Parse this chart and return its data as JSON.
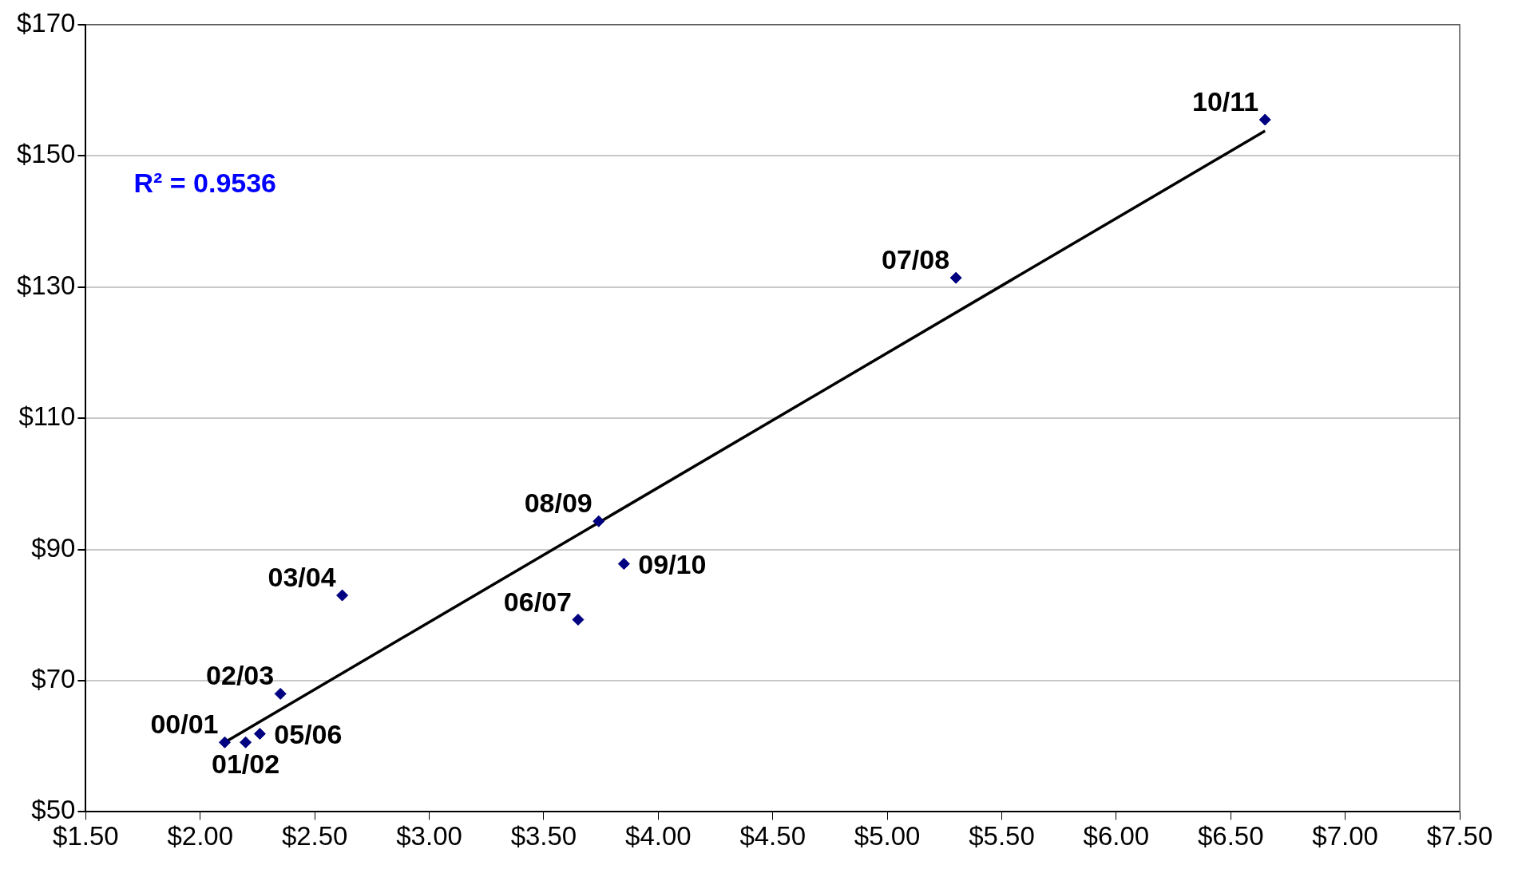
{
  "chart_data": {
    "type": "scatter",
    "marker": "diamond",
    "grid": "y",
    "legend": false,
    "xlim": [
      1.5,
      7.5
    ],
    "ylim": [
      50,
      170
    ],
    "xticks": [
      {
        "value": 1.5,
        "label": "$1.50"
      },
      {
        "value": 2,
        "label": "$2.00"
      },
      {
        "value": 2.5,
        "label": "$2.50"
      },
      {
        "value": 3,
        "label": "$3.00"
      },
      {
        "value": 3.5,
        "label": "$3.50"
      },
      {
        "value": 4,
        "label": "$4.00"
      },
      {
        "value": 4.5,
        "label": "$4.50"
      },
      {
        "value": 5,
        "label": "$5.00"
      },
      {
        "value": 5.5,
        "label": "$5.50"
      },
      {
        "value": 6,
        "label": "$6.00"
      },
      {
        "value": 6.5,
        "label": "$6.50"
      },
      {
        "value": 7,
        "label": "$7.00"
      },
      {
        "value": 7.5,
        "label": "$7.50"
      }
    ],
    "yticks": [
      {
        "value": 50,
        "label": "$50"
      },
      {
        "value": 70,
        "label": "$70"
      },
      {
        "value": 90,
        "label": "$90"
      },
      {
        "value": 110,
        "label": "$110"
      },
      {
        "value": 130,
        "label": "$130"
      },
      {
        "value": 150,
        "label": "$150"
      },
      {
        "value": 170,
        "label": "$170"
      }
    ],
    "series": [
      {
        "color": "#000080",
        "x": [
          2.107,
          2.198,
          2.26,
          2.35,
          2.62,
          3.65,
          3.74,
          3.85,
          5.3,
          6.65
        ],
        "values": [
          60.6,
          60.6,
          61.9,
          68.0,
          83.0,
          79.3,
          94.3,
          87.8,
          131.4,
          155.5
        ]
      },
      {
        "type": "line",
        "color": "#000000",
        "marker": "none",
        "x": [
          2.107,
          6.65
        ],
        "values": [
          60.6,
          153.8
        ]
      }
    ],
    "annotations": [
      "R² = 0.9536",
      {
        "text": "00/01",
        "x": 2.107,
        "y": 60.6
      },
      {
        "text": "01/02",
        "x": 2.198,
        "y": 60.6
      },
      {
        "text": "05/06",
        "x": 2.26,
        "y": 61.9
      },
      {
        "text": "02/03",
        "x": 2.35,
        "y": 68.0
      },
      {
        "text": "03/04",
        "x": 2.62,
        "y": 83.0
      },
      {
        "text": "06/07",
        "x": 3.65,
        "y": 79.3
      },
      {
        "text": "08/09",
        "x": 3.74,
        "y": 94.3
      },
      {
        "text": "09/10",
        "x": 3.85,
        "y": 87.8
      },
      {
        "text": "07/08",
        "x": 5.3,
        "y": 131.4
      },
      {
        "text": "10/11",
        "x": 6.65,
        "y": 155.5
      }
    ]
  }
}
